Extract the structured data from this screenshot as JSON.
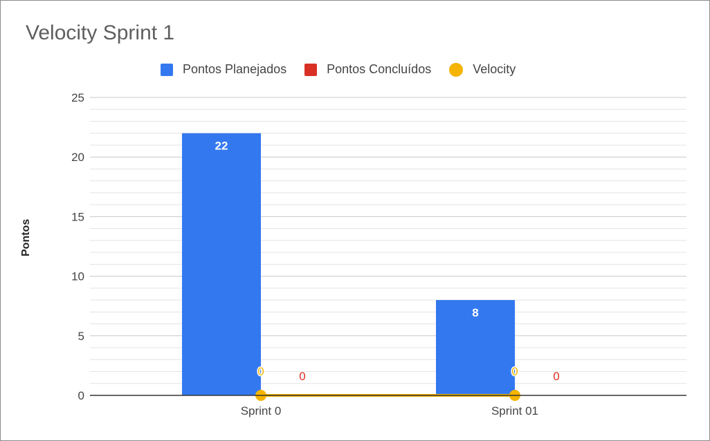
{
  "chart_data": {
    "type": "bar",
    "title": "Velocity Sprint 1",
    "xlabel": "",
    "ylabel": "Pontos",
    "categories": [
      "Sprint 0",
      "Sprint 01"
    ],
    "ylim": [
      0,
      25
    ],
    "yticks": [
      "0",
      "5",
      "10",
      "15",
      "20",
      "25"
    ],
    "grid": true,
    "legend_position": "top",
    "series": [
      {
        "name": "Pontos Planejados",
        "kind": "bar",
        "color": "#3478f0",
        "values": [
          22,
          8
        ],
        "labels": [
          "22",
          "8"
        ]
      },
      {
        "name": "Pontos Concluídos",
        "kind": "bar",
        "color": "#d93025",
        "values": [
          0,
          0
        ],
        "labels": [
          "0",
          "0"
        ]
      },
      {
        "name": "Velocity",
        "kind": "line",
        "color": "#f4b400",
        "values": [
          0,
          0
        ],
        "labels": [
          "0",
          "0"
        ]
      }
    ]
  }
}
